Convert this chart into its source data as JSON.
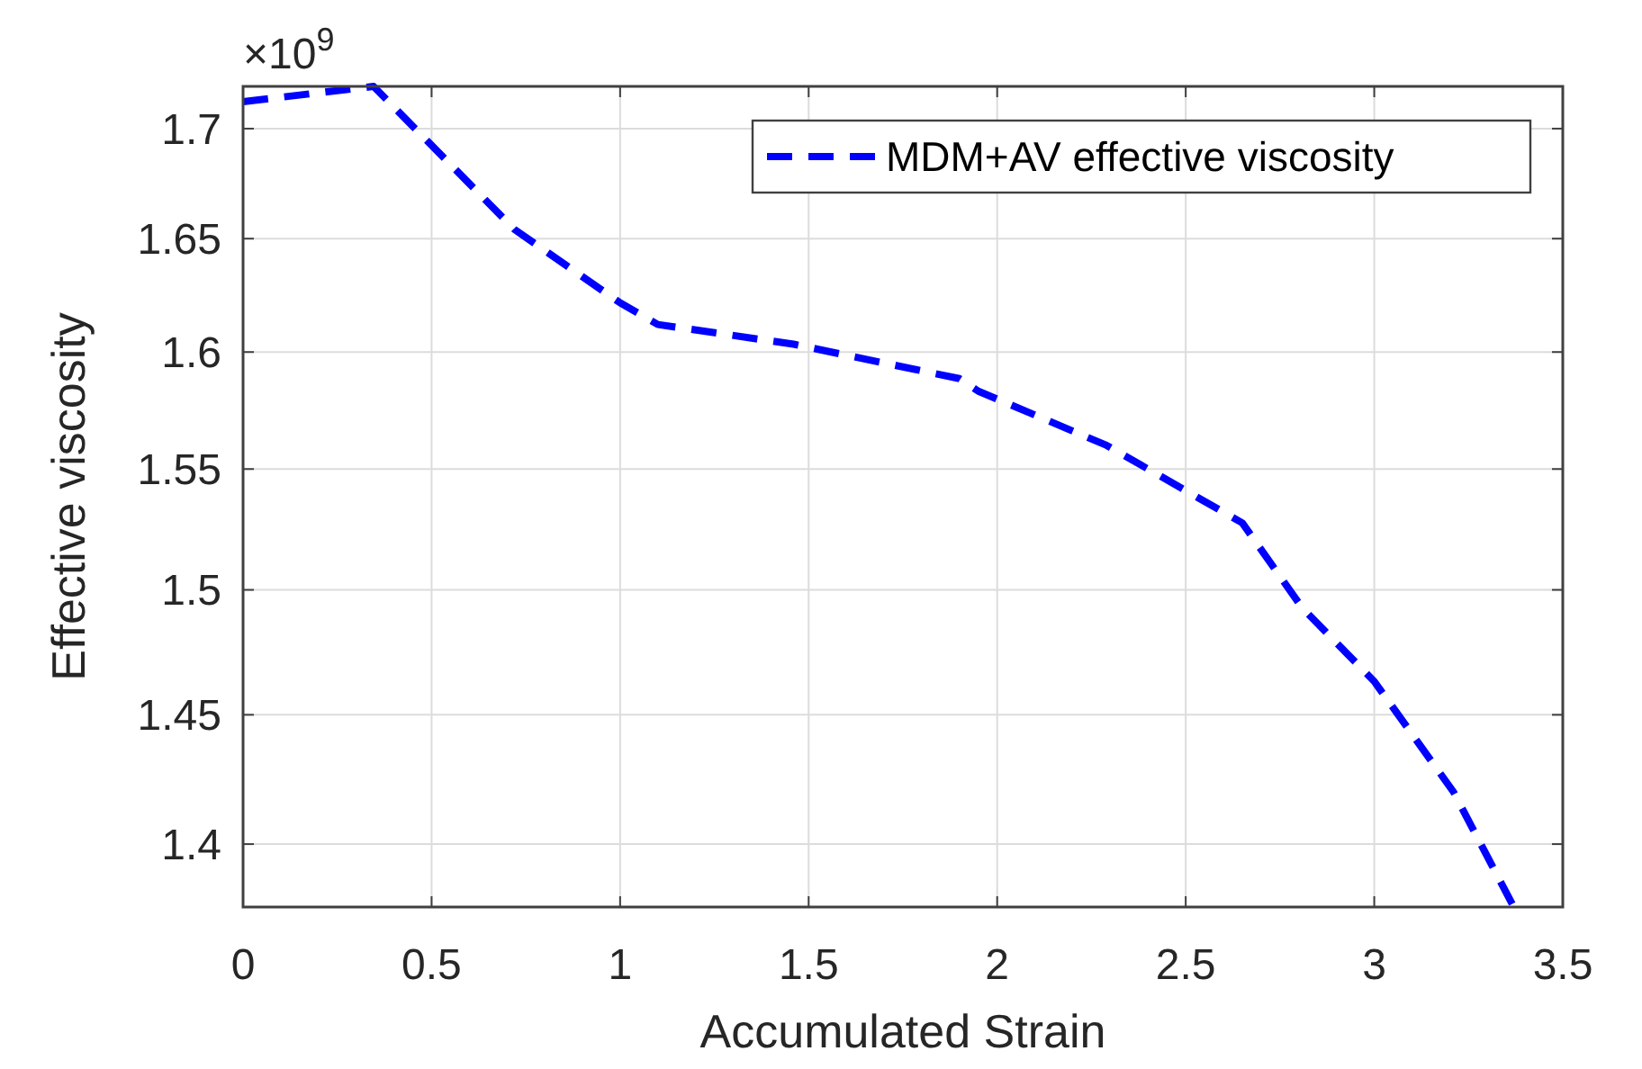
{
  "chart_data": {
    "type": "line",
    "xlabel": "Accumulated Strain",
    "ylabel": "Effective viscosity",
    "annotations": [
      "×10$^{9}$"
    ],
    "xlim": [
      0,
      3.5
    ],
    "xticks": [
      0,
      0.5,
      1,
      1.5,
      2,
      2.5,
      3,
      3.5
    ],
    "ylim": [
      1.3763,
      1.7196
    ],
    "yticks": [
      1.4,
      1.45,
      1.5,
      1.55,
      1.6,
      1.65,
      1.7
    ],
    "log": "y",
    "grid": true,
    "legend": "top right",
    "line_style": "dashed",
    "marker": "none",
    "series": [
      {
        "name": "MDM+AV effective viscosity",
        "color": "#0000ff",
        "x": [
          0,
          0.346,
          0.72,
          1.0,
          1.1,
          1.46,
          1.9,
          1.95,
          2.29,
          2.65,
          2.81,
          3.0,
          3.21,
          3.37
        ],
        "values": [
          1.7125,
          1.7196,
          1.6541,
          1.6215,
          1.612,
          1.6034,
          1.5885,
          1.5831,
          1.56,
          1.5275,
          1.4925,
          1.4632,
          1.42,
          1.3763
        ]
      }
    ]
  }
}
